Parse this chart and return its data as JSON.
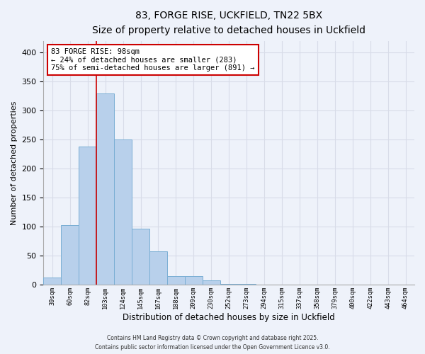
{
  "title": "83, FORGE RISE, UCKFIELD, TN22 5BX",
  "subtitle": "Size of property relative to detached houses in Uckfield",
  "xlabel": "Distribution of detached houses by size in Uckfield",
  "ylabel": "Number of detached properties",
  "bin_labels": [
    "39sqm",
    "60sqm",
    "82sqm",
    "103sqm",
    "124sqm",
    "145sqm",
    "167sqm",
    "188sqm",
    "209sqm",
    "230sqm",
    "252sqm",
    "273sqm",
    "294sqm",
    "315sqm",
    "337sqm",
    "358sqm",
    "379sqm",
    "400sqm",
    "422sqm",
    "443sqm",
    "464sqm"
  ],
  "bar_heights": [
    13,
    103,
    238,
    330,
    250,
    96,
    58,
    15,
    15,
    8,
    2,
    1,
    0,
    0,
    0,
    0,
    0,
    0,
    0,
    0,
    0
  ],
  "bar_color": "#b8d0eb",
  "bar_edge_color": "#7aaed4",
  "vline_x_index": 3,
  "vline_color": "#cc0000",
  "ylim": [
    0,
    420
  ],
  "yticks": [
    0,
    50,
    100,
    150,
    200,
    250,
    300,
    350,
    400
  ],
  "annotation_line1": "83 FORGE RISE: 98sqm",
  "annotation_line2": "← 24% of detached houses are smaller (283)",
  "annotation_line3": "75% of semi-detached houses are larger (891) →",
  "annotation_box_color": "#ffffff",
  "annotation_box_edge": "#cc0000",
  "background_color": "#eef2fa",
  "grid_color": "#d8dce8",
  "footer_line1": "Contains HM Land Registry data © Crown copyright and database right 2025.",
  "footer_line2": "Contains public sector information licensed under the Open Government Licence v3.0."
}
